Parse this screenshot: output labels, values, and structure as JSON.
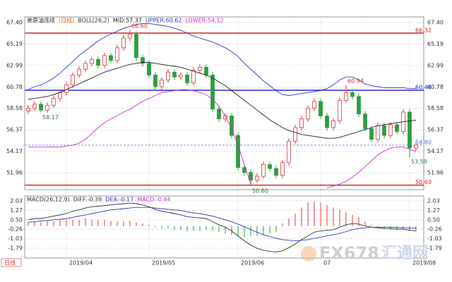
{
  "chart_data": [
    {
      "type": "candlestick",
      "title": "美原油连续",
      "header_period": "(日线)",
      "indicator": "BOLL(26,2)",
      "period": "日线",
      "categories": [
        null,
        null,
        null,
        null,
        null,
        null,
        "2019/04",
        null,
        null,
        null,
        null,
        null,
        null,
        null,
        null,
        null,
        null,
        null,
        null,
        "2019/05",
        null,
        null,
        null,
        null,
        null,
        null,
        null,
        null,
        null,
        null,
        null,
        null,
        null,
        "2019/06",
        null,
        null,
        null,
        null,
        null,
        null,
        null,
        null,
        null,
        null,
        null,
        null,
        "07",
        null,
        null,
        null,
        null,
        null,
        null,
        null,
        null,
        null,
        null,
        null,
        null,
        null,
        "2019/08",
        null
      ],
      "open": [
        58.3,
        58.6,
        59.0,
        58.4,
        58.9,
        59.6,
        60.2,
        61.0,
        62.0,
        62.6,
        63.2,
        63.6,
        63.0,
        64.0,
        63.5,
        64.8,
        65.8,
        66.2,
        63.8,
        63.2,
        62.0,
        60.8,
        61.5,
        62.3,
        61.8,
        62.0,
        61.2,
        62.5,
        62.8,
        62.0,
        58.5,
        57.5,
        57.8,
        55.8,
        52.5,
        52.0,
        51.2,
        51.6,
        52.8,
        52.4,
        51.7,
        53.0,
        55.2,
        56.6,
        57.5,
        58.6,
        59.3,
        57.8,
        56.6,
        57.3,
        59.4,
        60.2,
        59.8,
        58.0,
        56.5,
        55.4,
        56.8,
        55.8,
        56.9,
        56.2,
        58.2,
        54.5
      ],
      "high": [
        58.9,
        59.3,
        59.3,
        59.2,
        59.9,
        60.5,
        61.3,
        62.3,
        62.9,
        63.5,
        63.9,
        63.9,
        64.3,
        64.3,
        65.1,
        66.1,
        66.6,
        66.5,
        64.1,
        63.5,
        62.3,
        61.8,
        62.6,
        62.6,
        62.3,
        62.3,
        62.8,
        63.1,
        63.1,
        62.3,
        58.8,
        58.1,
        58.1,
        56.1,
        52.8,
        52.3,
        51.9,
        53.1,
        53.1,
        52.7,
        53.3,
        55.5,
        56.9,
        57.8,
        58.9,
        59.6,
        59.6,
        58.1,
        57.6,
        59.7,
        60.94,
        60.5,
        60.1,
        58.3,
        56.8,
        57.1,
        57.1,
        57.2,
        57.2,
        58.5,
        58.5,
        55.1
      ],
      "low": [
        58.0,
        58.3,
        58.17,
        58.1,
        58.6,
        59.3,
        59.9,
        60.7,
        61.7,
        62.3,
        62.9,
        62.7,
        62.7,
        63.2,
        63.2,
        64.5,
        65.5,
        63.5,
        62.9,
        61.7,
        60.5,
        60.5,
        61.2,
        61.5,
        61.5,
        60.9,
        60.9,
        62.2,
        61.7,
        58.2,
        57.2,
        57.2,
        55.5,
        52.2,
        51.7,
        50.6,
        50.9,
        51.3,
        52.1,
        51.4,
        51.4,
        52.7,
        54.9,
        56.3,
        57.2,
        58.3,
        57.5,
        56.3,
        56.3,
        57.0,
        59.1,
        59.5,
        57.7,
        56.2,
        55.1,
        55.1,
        55.5,
        55.5,
        55.9,
        55.9,
        53.59,
        54.2
      ],
      "close": [
        58.6,
        59.0,
        58.4,
        58.9,
        59.6,
        60.2,
        61.0,
        62.0,
        62.6,
        63.2,
        63.6,
        63.0,
        64.0,
        63.5,
        64.8,
        65.8,
        66.2,
        63.8,
        63.2,
        62.0,
        60.8,
        61.5,
        62.3,
        61.8,
        62.0,
        61.2,
        62.5,
        62.8,
        62.0,
        58.5,
        57.5,
        57.8,
        55.8,
        52.5,
        52.0,
        51.2,
        51.6,
        52.8,
        52.4,
        51.7,
        53.0,
        55.2,
        56.6,
        57.5,
        58.6,
        59.3,
        57.8,
        56.6,
        57.3,
        59.4,
        60.2,
        59.8,
        58.0,
        56.5,
        55.4,
        56.8,
        55.8,
        56.9,
        56.2,
        58.2,
        54.5,
        54.8
      ],
      "up_color": "#e0393e",
      "down_color": "#2e9e3e",
      "series": [
        {
          "name": "MID:57.37",
          "color": "#222222",
          "values": [
            59.5,
            59.6,
            59.7,
            59.8,
            60.0,
            60.2,
            60.5,
            60.8,
            61.1,
            61.4,
            61.7,
            62.0,
            62.3,
            62.5,
            62.7,
            62.9,
            63.1,
            63.2,
            63.3,
            63.3,
            63.2,
            63.1,
            63.0,
            62.9,
            62.8,
            62.6,
            62.4,
            62.2,
            62.0,
            61.7,
            61.3,
            60.9,
            60.4,
            59.9,
            59.4,
            58.9,
            58.4,
            57.9,
            57.4,
            57.0,
            56.6,
            56.3,
            56.1,
            55.9,
            55.8,
            55.7,
            55.6,
            55.5,
            55.5,
            55.6,
            55.8,
            56.0,
            56.2,
            56.4,
            56.6,
            56.8,
            56.9,
            57.0,
            57.1,
            57.2,
            57.3,
            57.37
          ]
        },
        {
          "name": "UPPER:60.62",
          "color": "#3636c8",
          "values": [
            60.5,
            60.8,
            61.0,
            61.3,
            61.7,
            62.2,
            62.8,
            63.4,
            64.0,
            64.5,
            65.0,
            65.5,
            65.9,
            66.2,
            66.5,
            66.8,
            67.0,
            67.2,
            67.3,
            67.3,
            67.2,
            67.1,
            67.0,
            66.8,
            66.6,
            66.3,
            66.0,
            65.8,
            65.6,
            65.4,
            65.1,
            64.8,
            64.4,
            63.9,
            63.2,
            62.6,
            62.0,
            61.4,
            60.9,
            60.4,
            60.0,
            59.9,
            60.0,
            60.1,
            60.2,
            60.3,
            60.4,
            60.6,
            61.0,
            61.5,
            61.8,
            61.8,
            61.5,
            61.1,
            60.9,
            60.8,
            60.7,
            60.7,
            60.7,
            60.7,
            60.6,
            60.62
          ]
        },
        {
          "name": "LOWER:54.12",
          "color": "#d42ad4",
          "values": [
            54.6,
            54.6,
            54.6,
            54.6,
            54.6,
            54.6,
            54.7,
            54.8,
            55.0,
            55.4,
            56.0,
            56.6,
            57.1,
            57.5,
            57.8,
            58.2,
            58.5,
            58.9,
            59.3,
            59.6,
            59.9,
            60.2,
            60.3,
            60.4,
            60.5,
            60.5,
            60.4,
            60.2,
            60.0,
            59.5,
            58.8,
            57.8,
            56.5,
            54.8,
            52.8,
            50.8,
            null,
            null,
            null,
            null,
            null,
            null,
            null,
            null,
            null,
            null,
            null,
            50.4,
            50.6,
            50.8,
            51.1,
            51.5,
            52.0,
            52.6,
            53.2,
            53.8,
            54.2,
            54.5,
            54.6,
            54.6,
            54.4,
            54.12
          ]
        }
      ],
      "ylim": [
        50.3,
        67.9
      ],
      "yticks": [
        {
          "value": 67.4,
          "label": "67.40"
        },
        65.19,
        62.99,
        60.78,
        58.58,
        56.37,
        54.17,
        51.96
      ],
      "grid": true,
      "hlines": [
        {
          "value": 66.32,
          "label": "66.32",
          "color": "#d9262c",
          "style": "solid"
        },
        {
          "value": 60.44,
          "label": "60.44",
          "color": "#2828e0",
          "style": "solid"
        },
        {
          "value": 54.8,
          "label": "54.80",
          "color": "#4a78d0",
          "style": "dashed"
        },
        {
          "value": 50.69,
          "label": "50.69",
          "color": "#d9262c",
          "style": "solid"
        }
      ],
      "annotations": [
        {
          "value": 66.6,
          "label": "66.60"
        },
        {
          "value": 58.17,
          "label": "58.17"
        },
        {
          "value": 50.6,
          "label": "50.60"
        },
        {
          "value": 60.94,
          "label": "60.94"
        },
        {
          "value": 53.59,
          "label": "53.59"
        }
      ]
    },
    {
      "type": "macd",
      "title": "MACD(26,12,9)",
      "series": [
        {
          "name": "DIFF:-0.39",
          "color": "#333333",
          "values": [
            0.5,
            0.6,
            0.6,
            0.7,
            0.8,
            0.9,
            1.0,
            1.2,
            1.3,
            1.45,
            1.55,
            1.6,
            1.65,
            1.7,
            1.75,
            1.8,
            1.85,
            1.8,
            1.7,
            1.55,
            1.35,
            1.2,
            1.1,
            1.0,
            0.9,
            0.75,
            0.7,
            0.65,
            0.6,
            0.35,
            0.1,
            -0.1,
            -0.4,
            -0.8,
            -1.2,
            -1.55,
            -1.8,
            -1.95,
            -2.05,
            -2.1,
            -2.0,
            -1.75,
            -1.45,
            -1.1,
            -0.8,
            -0.5,
            -0.4,
            -0.35,
            -0.3,
            -0.1,
            0.1,
            0.2,
            0.15,
            0.0,
            -0.1,
            -0.15,
            -0.2,
            -0.2,
            -0.25,
            -0.25,
            -0.35,
            -0.39
          ]
        },
        {
          "name": "DEA:-0.17",
          "color": "#3636c8",
          "values": [
            0.3,
            0.35,
            0.4,
            0.45,
            0.5,
            0.55,
            0.6,
            0.7,
            0.8,
            0.9,
            1.0,
            1.1,
            1.2,
            1.3,
            1.35,
            1.4,
            1.45,
            1.5,
            1.5,
            1.5,
            1.45,
            1.4,
            1.35,
            1.3,
            1.25,
            1.15,
            1.05,
            1.0,
            0.9,
            0.8,
            0.65,
            0.5,
            0.35,
            0.15,
            -0.05,
            -0.3,
            -0.5,
            -0.7,
            -0.85,
            -1.0,
            -1.1,
            -1.15,
            -1.2,
            -1.15,
            -1.1,
            -1.0,
            -0.9,
            -0.8,
            -0.7,
            -0.6,
            -0.45,
            -0.3,
            -0.2,
            -0.15,
            -0.1,
            -0.1,
            -0.1,
            -0.1,
            -0.12,
            -0.14,
            -0.16,
            -0.17
          ]
        },
        {
          "name": "MACD:-0.44",
          "color": "#d42ad4",
          "kind": "histogram",
          "values": [
            0.3,
            0.3,
            0.3,
            0.4,
            0.4,
            0.5,
            0.5,
            0.5,
            0.5,
            0.6,
            0.5,
            0.5,
            0.5,
            0.4,
            0.4,
            0.4,
            0.4,
            0.3,
            0.2,
            0.1,
            -0.1,
            -0.2,
            -0.2,
            -0.3,
            -0.3,
            -0.4,
            -0.4,
            -0.4,
            -0.3,
            -0.4,
            -0.5,
            -0.6,
            -0.7,
            -0.8,
            -0.9,
            -0.8,
            -0.8,
            -0.7,
            -0.6,
            -0.5,
            0.2,
            0.6,
            1.0,
            1.5,
            1.9,
            2.0,
            1.9,
            1.7,
            1.5,
            1.3,
            1.1,
            0.9,
            0.7,
            0.4,
            0.1,
            -0.1,
            -0.2,
            -0.3,
            -0.3,
            -0.2,
            -0.4,
            -0.44
          ]
        }
      ],
      "up_color": "#e0393e",
      "down_color": "#2e9e3e",
      "ylim": [
        -2.53,
        2.31
      ],
      "yticks": [
        2.03,
        1.27,
        {
          "value": 0.5,
          "label": "0.50"
        },
        -0.26,
        -1.03,
        -1.79
      ],
      "grid": true
    }
  ],
  "watermark": [
    "FX678",
    "汇通网"
  ]
}
